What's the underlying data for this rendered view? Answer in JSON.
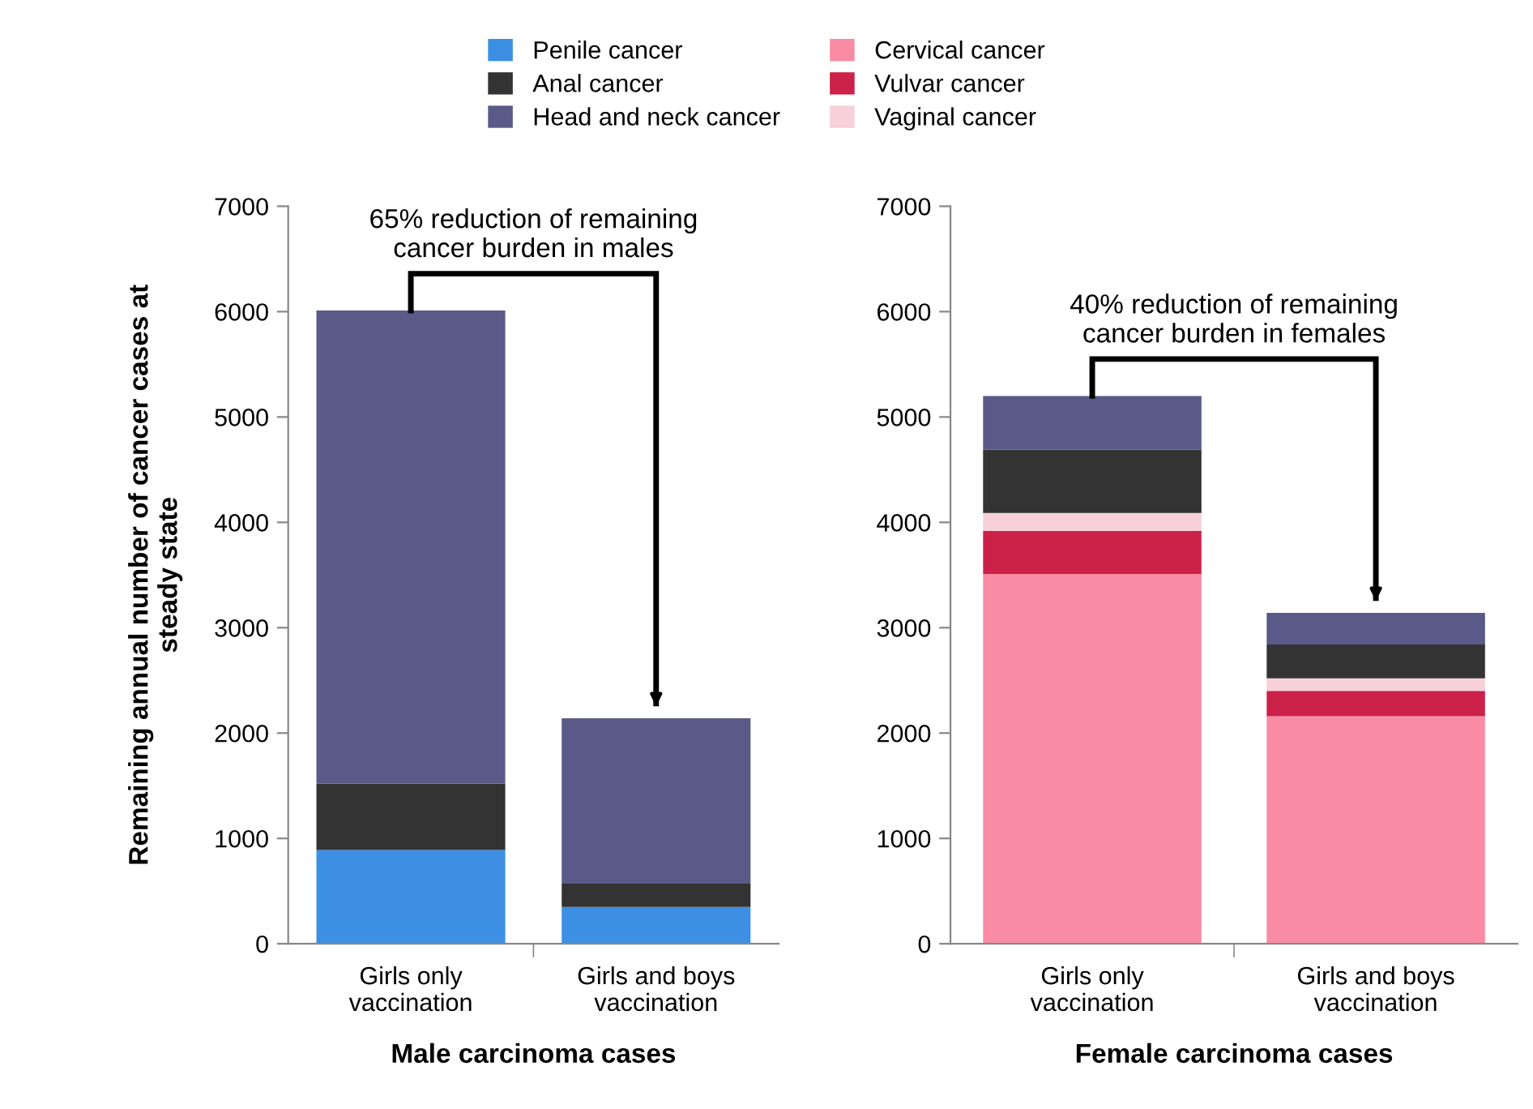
{
  "chart_data": [
    {
      "type": "bar",
      "stacked": true,
      "xlabel": "Male carcinoma cases",
      "ylabel": "Remaining annual number of cancer cases at\nsteady state",
      "categories": [
        "Girls only\nvaccination",
        "Girls and boys\nvaccination"
      ],
      "series": [
        {
          "name": "Penile cancer",
          "color": "#3d8fe3",
          "values": [
            890,
            350
          ]
        },
        {
          "name": "Anal cancer",
          "color": "#333333",
          "values": [
            630,
            220
          ]
        },
        {
          "name": "Head and neck cancer",
          "color": "#5a5a88",
          "values": [
            4490,
            1570
          ]
        }
      ],
      "ylim": [
        0,
        7000
      ],
      "yticks": [
        0,
        1000,
        2000,
        3000,
        4000,
        5000,
        6000,
        7000
      ],
      "grid": false,
      "legend": "top",
      "annotations": [
        "65% reduction of remaining\ncancer burden in males"
      ]
    },
    {
      "type": "bar",
      "stacked": true,
      "xlabel": "Female carcinoma cases",
      "categories": [
        "Girls only\nvaccination",
        "Girls and boys\nvaccination"
      ],
      "series": [
        {
          "name": "Cervical cancer",
          "color": "#f98ba4",
          "values": [
            3510,
            2160
          ]
        },
        {
          "name": "Vulvar cancer",
          "color": "#cc2149",
          "values": [
            410,
            240
          ]
        },
        {
          "name": "Vaginal cancer",
          "color": "#f7d0da",
          "values": [
            170,
            120
          ]
        },
        {
          "name": "Anal cancer",
          "color": "#333333",
          "values": [
            600,
            320
          ]
        },
        {
          "name": "Head and neck cancer",
          "color": "#5a5a88",
          "values": [
            510,
            300
          ]
        }
      ],
      "ylim": [
        0,
        7000
      ],
      "yticks": [
        0,
        1000,
        2000,
        3000,
        4000,
        5000,
        6000,
        7000
      ],
      "grid": false,
      "legend": "top",
      "annotations": [
        "40% reduction of remaining\ncancer burden in females"
      ]
    }
  ]
}
